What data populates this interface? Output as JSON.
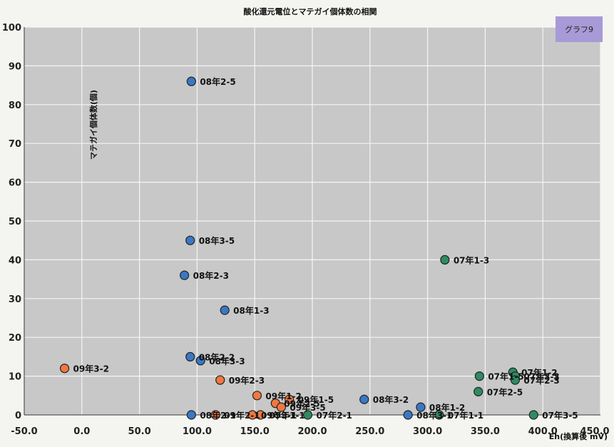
{
  "chart_data": {
    "type": "scatter",
    "title": "酸化還元電位とマテガイ個体数の相関",
    "xlabel": "Eh(換算後 mV)",
    "ylabel": "マテガイ個体数(個)",
    "badge": "グラフ9",
    "xlim": [
      -50,
      450
    ],
    "ylim": [
      0,
      100
    ],
    "x_ticks": [
      "-50.0",
      "0.0",
      "50.0",
      "100.0",
      "150.0",
      "200.0",
      "250.0",
      "300.0",
      "350.0",
      "400.0",
      "450.0"
    ],
    "y_ticks": [
      "0",
      "10",
      "20",
      "30",
      "40",
      "50",
      "60",
      "70",
      "80",
      "90",
      "100"
    ],
    "grid": true,
    "series": [
      {
        "color": "#3a78c4",
        "points": [
          {
            "x": 95,
            "y": 86,
            "label": "08年2-5"
          },
          {
            "x": 94,
            "y": 45,
            "label": "08年3-5"
          },
          {
            "x": 89,
            "y": 36,
            "label": "08年2-3"
          },
          {
            "x": 124,
            "y": 27,
            "label": "08年1-3"
          },
          {
            "x": 94,
            "y": 15,
            "label": "08年2-2"
          },
          {
            "x": 103,
            "y": 14,
            "label": "08年3-3"
          },
          {
            "x": 245,
            "y": 4,
            "label": "08年3-2"
          },
          {
            "x": 294,
            "y": 2,
            "label": "08年1-2"
          },
          {
            "x": 95,
            "y": 0,
            "label": "08年2-1"
          },
          {
            "x": 283,
            "y": 0,
            "label": "08年3-1"
          }
        ]
      },
      {
        "color": "#f07840",
        "points": [
          {
            "x": -15,
            "y": 12,
            "label": "09年3-2"
          },
          {
            "x": 120,
            "y": 9,
            "label": "09年2-3"
          },
          {
            "x": 152,
            "y": 5,
            "label": "09年1-2"
          },
          {
            "x": 180,
            "y": 4,
            "label": "09年1-5"
          },
          {
            "x": 168,
            "y": 3,
            "label": "09年2-5"
          },
          {
            "x": 173,
            "y": 2,
            "label": "09年3-5"
          },
          {
            "x": 116,
            "y": 0,
            "label": "09年2-1"
          },
          {
            "x": 148,
            "y": 0,
            "label": "09年3-1"
          },
          {
            "x": 155,
            "y": 0,
            "label": "09年1-1"
          }
        ]
      },
      {
        "color": "#2e8b62",
        "points": [
          {
            "x": 315,
            "y": 40,
            "label": "07年1-3"
          },
          {
            "x": 345,
            "y": 10,
            "label": "07年1-5"
          },
          {
            "x": 374,
            "y": 11,
            "label": "07年1-2"
          },
          {
            "x": 376,
            "y": 10,
            "label": "07年3-3"
          },
          {
            "x": 376,
            "y": 9,
            "label": "07年2-3"
          },
          {
            "x": 344,
            "y": 6,
            "label": "07年2-5"
          },
          {
            "x": 196,
            "y": 0,
            "label": "07年2-1"
          },
          {
            "x": 392,
            "y": 0,
            "label": "07年3-5"
          },
          {
            "x": 310,
            "y": 0,
            "label": "07年1-1"
          }
        ]
      }
    ]
  }
}
